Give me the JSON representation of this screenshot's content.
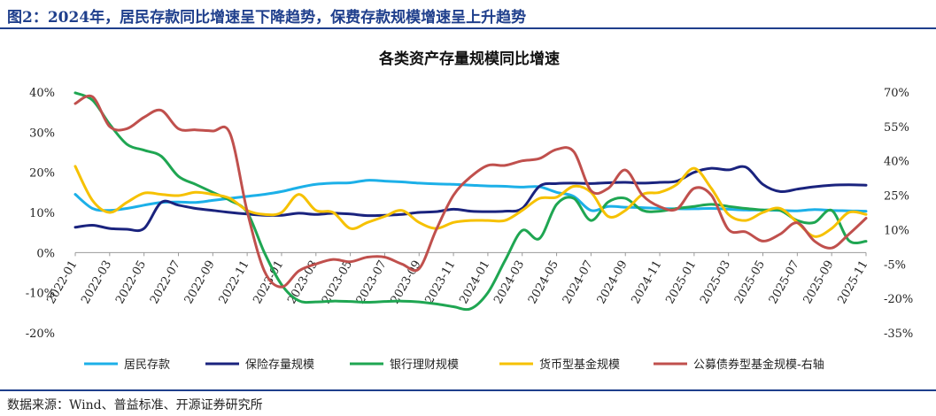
{
  "figure_title": "图2：2024年，居民存款同比增速呈下降趋势，保费存款规模增速呈上升趋势",
  "source_text": "数据来源：Wind、普益标准、开源证券研究所",
  "chart_data": {
    "type": "line",
    "title": "各类资产存量规模同比增速",
    "x_labels": [
      "2022-01",
      "2022-03",
      "2022-05",
      "2022-07",
      "2022-09",
      "2022-11",
      "2023-01",
      "2023-03",
      "2023-05",
      "2023-07",
      "2023-09",
      "2023-11",
      "2024-01",
      "2024-03",
      "2024-05",
      "2024-07",
      "2024-09",
      "2024-11",
      "2025-01",
      "2025-03",
      "2025-05",
      "2025-07",
      "2025-09",
      "2025-11"
    ],
    "left_axis": {
      "min": -20,
      "max": 40,
      "ticks": [
        -20,
        -10,
        0,
        10,
        20,
        30,
        40
      ],
      "labels": [
        "-20%",
        "-10%",
        "0%",
        "10%",
        "20%",
        "30%",
        "40%"
      ]
    },
    "right_axis": {
      "min": -35,
      "max": 70,
      "ticks": [
        -35,
        -20,
        -5,
        10,
        25,
        40,
        55,
        70
      ],
      "labels": [
        "-35%",
        "-20%",
        "-5%",
        "10%",
        "25%",
        "40%",
        "55%",
        "70%"
      ]
    },
    "grid": false,
    "legend_position": "bottom",
    "series": [
      {
        "name": "居民存款",
        "color": "#1cb0e8",
        "axis": "left",
        "x": [
          0,
          1,
          2,
          3,
          4,
          5,
          6,
          7,
          8,
          9,
          10,
          11,
          12,
          13,
          14,
          15,
          16,
          17,
          18,
          19,
          20,
          21,
          22,
          23,
          24,
          25,
          26,
          27,
          28,
          29,
          30,
          31,
          32,
          33,
          34,
          35,
          36,
          37,
          38,
          39,
          40,
          41,
          42,
          43,
          44,
          45,
          46
        ],
        "values": [
          14.5,
          11,
          10.5,
          11,
          11.8,
          12.5,
          12.6,
          12.5,
          13,
          13.5,
          14,
          14.5,
          15.2,
          16.2,
          17,
          17.3,
          17.4,
          18,
          17.8,
          17.6,
          17.3,
          17.1,
          17,
          16.8,
          16.6,
          16.5,
          16.3,
          16.4,
          15,
          14,
          10.5,
          11.5,
          11.3,
          11.2,
          11,
          10.9,
          10.9,
          11,
          10.8,
          10.6,
          10.6,
          10.5,
          10.4,
          10.7,
          10.5,
          10.4,
          10.3
        ]
      },
      {
        "name": "保险存量规模",
        "color": "#1a237e",
        "axis": "left",
        "x": [
          0,
          1,
          2,
          3,
          4,
          5,
          6,
          7,
          8,
          9,
          10,
          11,
          12,
          13,
          14,
          15,
          16,
          17,
          18,
          19,
          20,
          21,
          22,
          23,
          24,
          25,
          26,
          27,
          28,
          29,
          30,
          31,
          32,
          33,
          34,
          35,
          36,
          37,
          38,
          39,
          40,
          41,
          42,
          43,
          44,
          45,
          46
        ],
        "values": [
          6.3,
          6.8,
          6,
          5.8,
          6,
          12.5,
          11.8,
          11,
          10.5,
          10,
          9.6,
          9.3,
          9.3,
          9.8,
          9.5,
          9.8,
          9.6,
          9.2,
          9.3,
          9.5,
          10,
          10.2,
          10.8,
          10.3,
          10.2,
          10.3,
          11,
          16.5,
          17.2,
          17.3,
          17.2,
          17.4,
          17.5,
          17.3,
          17.5,
          17.8,
          20,
          21,
          20.6,
          21.3,
          17,
          15.2,
          15.8,
          16.4,
          16.8,
          16.9,
          16.8
        ]
      },
      {
        "name": "银行理财规模",
        "color": "#1fa652",
        "axis": "left",
        "x": [
          0,
          1,
          2,
          3,
          4,
          5,
          6,
          7,
          8,
          9,
          10,
          11,
          12,
          13,
          14,
          15,
          16,
          17,
          18,
          19,
          20,
          21,
          22,
          23,
          24,
          25,
          26,
          27,
          28,
          29,
          30,
          31,
          32,
          33,
          34,
          35,
          36,
          37,
          38,
          39,
          40,
          41,
          42,
          43,
          44,
          45,
          46
        ],
        "values": [
          39.8,
          38,
          32,
          27,
          25.5,
          24,
          19,
          17,
          15,
          13,
          10,
          0,
          -8,
          -12,
          -12.3,
          -12.1,
          -12.2,
          -12.4,
          -12.2,
          -12.1,
          -12.3,
          -12.8,
          -13.5,
          -14,
          -10,
          -2,
          5.5,
          3.5,
          12,
          13.5,
          8,
          12.6,
          13.5,
          10.5,
          10.3,
          11,
          11.5,
          12,
          11.5,
          11,
          10.6,
          10.5,
          8,
          7.5,
          10.5,
          3,
          2.8
        ]
      },
      {
        "name": "货币型基金规模",
        "color": "#f6c100",
        "axis": "left",
        "x": [
          0,
          1,
          2,
          3,
          4,
          5,
          6,
          7,
          8,
          9,
          10,
          11,
          12,
          13,
          14,
          15,
          16,
          17,
          18,
          19,
          20,
          21,
          22,
          23,
          24,
          25,
          26,
          27,
          28,
          29,
          30,
          31,
          32,
          33,
          34,
          35,
          36,
          37,
          38,
          39,
          40,
          41,
          42,
          43,
          44,
          45,
          46
        ],
        "values": [
          21.5,
          13,
          10,
          12.5,
          14.8,
          14.5,
          14.2,
          15,
          14.5,
          13.5,
          10.5,
          9.5,
          10,
          14.5,
          10.5,
          10,
          6,
          7.5,
          9,
          10.5,
          7.5,
          6,
          7.5,
          8,
          8,
          8,
          10.5,
          13.5,
          13.8,
          16.5,
          15,
          9,
          10.5,
          14.5,
          15,
          17,
          21,
          16,
          9.5,
          8,
          10,
          11,
          7.5,
          4,
          6,
          10,
          9.5
        ]
      },
      {
        "name": "公募债券型基金规模-右轴",
        "color": "#c0504d",
        "axis": "right",
        "x": [
          0,
          1,
          2,
          3,
          4,
          5,
          6,
          7,
          8,
          9,
          10,
          11,
          12,
          13,
          14,
          15,
          16,
          17,
          18,
          19,
          20,
          21,
          22,
          23,
          24,
          25,
          26,
          27,
          28,
          29,
          30,
          31,
          32,
          33,
          34,
          35,
          36,
          37,
          38,
          39,
          40,
          41,
          42,
          43,
          44,
          45,
          46
        ],
        "values": [
          65,
          68,
          55,
          54,
          59,
          62,
          54,
          53.5,
          53,
          52,
          18,
          -8,
          -15,
          -8,
          -5,
          -3,
          -4,
          -2,
          -2,
          -5,
          -7,
          10,
          25,
          33,
          38,
          38,
          40,
          41,
          45,
          44,
          27,
          28,
          36,
          25,
          20,
          19,
          28,
          25,
          10,
          9,
          5,
          8,
          13,
          5,
          2,
          8,
          15
        ]
      }
    ]
  }
}
